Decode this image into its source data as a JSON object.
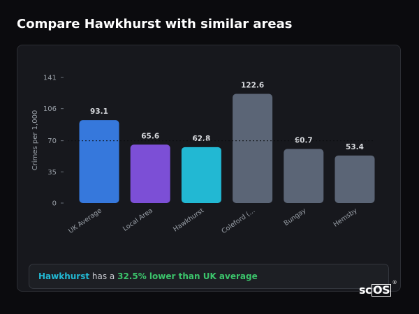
{
  "page": {
    "title": "Compare Hawkhurst with similar areas"
  },
  "chart_data": {
    "type": "bar",
    "ylabel": "Crimes per 1,000",
    "xlabel": "",
    "ylim": [
      0,
      141
    ],
    "yticks": [
      0,
      35,
      70,
      106,
      141
    ],
    "reference_line": 70,
    "categories": [
      "UK Average",
      "Local Area",
      "Hawkhurst",
      "Coleford (...",
      "Bungay",
      "Hemsby"
    ],
    "values": [
      93.1,
      65.6,
      62.8,
      122.6,
      60.7,
      53.4
    ],
    "value_labels": [
      "93.1",
      "65.6",
      "62.8",
      "122.6",
      "60.7",
      "53.4"
    ],
    "colors": [
      "#3678dc",
      "#7c4fd6",
      "#22b8d3",
      "#5b6576",
      "#5b6576",
      "#5b6576"
    ]
  },
  "summary": {
    "area": "Hawkhurst",
    "middle": " has a ",
    "difference": "32.5% lower than UK average"
  },
  "brand": {
    "prefix": "sc",
    "boxed": "OS",
    "reg": "®"
  }
}
